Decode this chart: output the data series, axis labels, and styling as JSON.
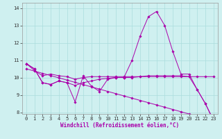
{
  "xlabel": "Windchill (Refroidissement éolien,°C)",
  "background_color": "#cff0f0",
  "grid_color": "#aadddd",
  "line_color": "#aa00aa",
  "xlim": [
    -0.5,
    23.5
  ],
  "ylim": [
    7.9,
    14.3
  ],
  "yticks": [
    8,
    9,
    10,
    11,
    12,
    13,
    14
  ],
  "xticks": [
    0,
    1,
    2,
    3,
    4,
    5,
    6,
    7,
    8,
    9,
    10,
    11,
    12,
    13,
    14,
    15,
    16,
    17,
    18,
    19,
    20,
    21,
    22,
    23
  ],
  "series": [
    {
      "x": [
        0,
        1,
        2,
        3,
        4,
        5,
        6,
        7,
        8,
        9,
        10,
        11,
        12,
        13,
        14,
        15,
        16,
        17,
        18,
        19,
        20,
        21,
        22,
        23
      ],
      "y": [
        10.8,
        10.5,
        9.7,
        9.6,
        9.8,
        9.7,
        8.6,
        10.1,
        9.5,
        9.2,
        9.9,
        10.0,
        10.0,
        11.0,
        12.4,
        13.5,
        13.8,
        13.0,
        11.5,
        10.2,
        10.2,
        9.3,
        8.5,
        7.5
      ]
    },
    {
      "x": [
        0,
        1,
        2,
        3,
        4,
        5,
        6,
        7,
        8,
        9,
        10,
        11,
        12,
        13,
        14,
        15,
        16,
        17,
        18,
        19,
        20,
        21,
        22,
        23
      ],
      "y": [
        10.8,
        10.5,
        9.7,
        9.6,
        9.8,
        9.7,
        9.55,
        9.7,
        9.8,
        9.9,
        9.95,
        10.0,
        10.0,
        10.0,
        10.05,
        10.1,
        10.1,
        10.1,
        10.1,
        10.1,
        10.05,
        9.3,
        8.5,
        7.55
      ]
    },
    {
      "x": [
        0,
        1,
        2,
        3,
        4,
        5,
        6,
        7,
        8,
        9,
        10,
        11,
        12,
        13,
        14,
        15,
        16,
        17,
        18,
        19,
        20,
        21,
        22,
        23
      ],
      "y": [
        10.8,
        10.4,
        10.1,
        10.2,
        10.1,
        10.05,
        9.9,
        10.0,
        10.05,
        10.05,
        10.05,
        10.05,
        10.05,
        10.05,
        10.05,
        10.05,
        10.05,
        10.05,
        10.05,
        10.05,
        10.05,
        10.05,
        10.05,
        10.05
      ]
    },
    {
      "x": [
        0,
        1,
        2,
        3,
        4,
        5,
        6,
        7,
        8,
        9,
        10,
        11,
        12,
        13,
        14,
        15,
        16,
        17,
        18,
        19,
        20,
        21,
        22,
        23
      ],
      "y": [
        10.5,
        10.37,
        10.24,
        10.11,
        9.98,
        9.85,
        9.72,
        9.59,
        9.46,
        9.33,
        9.2,
        9.07,
        8.94,
        8.81,
        8.68,
        8.55,
        8.42,
        8.29,
        8.16,
        8.03,
        7.9,
        7.77,
        7.64,
        7.55
      ]
    }
  ]
}
